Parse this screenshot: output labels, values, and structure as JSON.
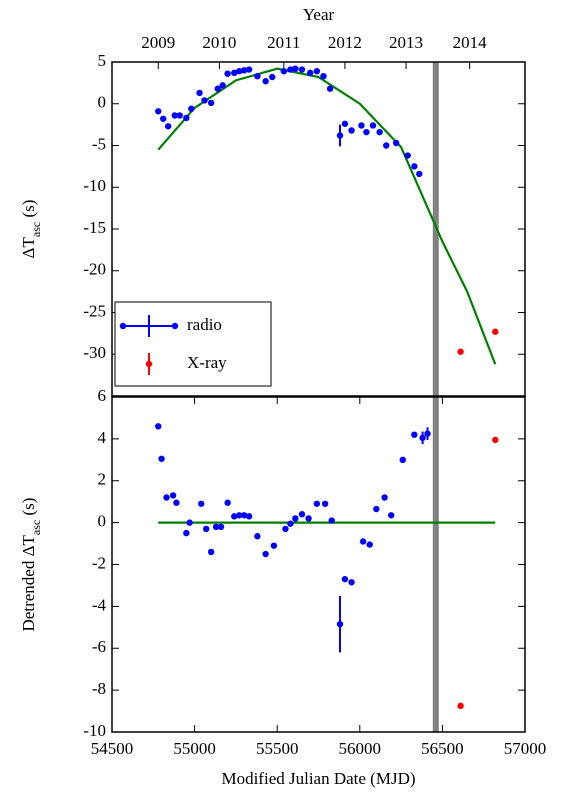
{
  "chart_data": [
    {
      "type": "scatter",
      "ylabel": [
        "ΔT",
        "asc",
        " (s)"
      ],
      "x2label": "Year",
      "x2ticks": [
        {
          "value": 54780,
          "label": "2009"
        },
        {
          "value": 55150,
          "label": "2010"
        },
        {
          "value": 55540,
          "label": "2011"
        },
        {
          "value": 55910,
          "label": "2012"
        },
        {
          "value": 56280,
          "label": "2013"
        },
        {
          "value": 56665,
          "label": "2014"
        }
      ],
      "xlim": [
        54500,
        57000
      ],
      "ylim": [
        -35,
        5
      ],
      "yticks": [
        5,
        0,
        -5,
        -10,
        -15,
        -20,
        -25,
        -30
      ],
      "legend": "lower left",
      "vline": {
        "x": 56460,
        "color": "#808080"
      },
      "fit": {
        "color": "#008000",
        "x": [
          54780,
          55000,
          55250,
          55500,
          55750,
          56000,
          56250,
          56500,
          56650,
          56820
        ],
        "values": [
          -5.5,
          -0.5,
          2.8,
          4.2,
          3.2,
          0,
          -5.2,
          -16.5,
          -22.5,
          -31.2
        ]
      },
      "series": [
        {
          "name": "radio",
          "color": "#0000ff",
          "x": [
            54780,
            54810,
            54840,
            54880,
            54910,
            54950,
            54980,
            55030,
            55060,
            55100,
            55140,
            55170,
            55200,
            55240,
            55270,
            55300,
            55330,
            55380,
            55430,
            55470,
            55540,
            55580,
            55610,
            55650,
            55700,
            55740,
            55780,
            55820,
            55880,
            55910,
            55950,
            56010,
            56040,
            56080,
            56120,
            56160,
            56220,
            56290,
            56330,
            56360
          ],
          "values": [
            -0.9,
            -1.8,
            -2.7,
            -1.4,
            -1.4,
            -1.7,
            -0.6,
            1.3,
            0.4,
            0.1,
            1.8,
            2.2,
            3.6,
            3.7,
            3.9,
            4.0,
            4.1,
            3.3,
            2.7,
            3.2,
            3.9,
            4.1,
            4.2,
            4.1,
            3.7,
            3.9,
            3.3,
            1.8,
            -3.8,
            -2.4,
            -3.2,
            -2.6,
            -3.4,
            -2.6,
            -3.4,
            -5.0,
            -4.7,
            -6.2,
            -7.5,
            -8.4
          ],
          "errors": [
            null,
            null,
            null,
            null,
            null,
            null,
            null,
            null,
            null,
            null,
            null,
            null,
            null,
            null,
            null,
            null,
            null,
            null,
            null,
            null,
            null,
            null,
            null,
            null,
            null,
            null,
            null,
            null,
            1.3,
            null,
            null,
            null,
            null,
            null,
            null,
            null,
            null,
            null,
            null,
            null
          ]
        },
        {
          "name": "X-ray",
          "color": "#ff0000",
          "x": [
            56610,
            56820
          ],
          "values": [
            -29.7,
            -27.3
          ]
        }
      ]
    },
    {
      "type": "scatter",
      "ylabel": [
        "Detrended ΔT",
        "asc",
        " (s)"
      ],
      "xlabel": "Modified Julian Date (MJD)",
      "xlim": [
        54500,
        57000
      ],
      "xticks": [
        54500,
        55000,
        55500,
        56000,
        56500,
        57000
      ],
      "ylim": [
        -10,
        6
      ],
      "yticks": [
        -10,
        -8,
        -6,
        -4,
        -2,
        0,
        2,
        4,
        6
      ],
      "vline": {
        "x": 56460,
        "color": "#808080"
      },
      "fit": {
        "color": "#008000",
        "x": [
          54780,
          56820
        ],
        "values": [
          0,
          0
        ]
      },
      "series": [
        {
          "color": "#0000ff",
          "x": [
            54780,
            54800,
            54830,
            54870,
            54890,
            54950,
            54970,
            55040,
            55070,
            55100,
            55130,
            55160,
            55200,
            55240,
            55270,
            55300,
            55330,
            55380,
            55430,
            55480,
            55550,
            55580,
            55610,
            55650,
            55690,
            55740,
            55790,
            55830,
            55880,
            55910,
            55950,
            56020,
            56060,
            56100,
            56150,
            56190,
            56260,
            56330,
            56380,
            56410
          ],
          "values": [
            4.6,
            3.05,
            1.2,
            1.3,
            0.95,
            -0.5,
            0.0,
            0.9,
            -0.3,
            -1.4,
            -0.2,
            -0.2,
            0.95,
            0.3,
            0.35,
            0.35,
            0.3,
            -0.65,
            -1.5,
            -1.1,
            -0.3,
            -0.05,
            0.2,
            0.4,
            0.2,
            0.9,
            0.9,
            0.1,
            -4.85,
            -2.7,
            -2.85,
            -0.9,
            -1.05,
            0.65,
            1.2,
            0.35,
            3.0,
            4.2,
            4.05,
            4.25
          ],
          "errors": [
            null,
            null,
            null,
            null,
            null,
            null,
            null,
            null,
            null,
            null,
            null,
            null,
            null,
            null,
            null,
            null,
            null,
            null,
            null,
            null,
            null,
            null,
            null,
            null,
            null,
            null,
            null,
            null,
            1.35,
            null,
            null,
            null,
            null,
            null,
            null,
            null,
            null,
            null,
            0.3,
            0.3
          ]
        },
        {
          "color": "#ff0000",
          "x": [
            56610,
            56820
          ],
          "values": [
            -8.75,
            3.95
          ]
        }
      ]
    }
  ]
}
